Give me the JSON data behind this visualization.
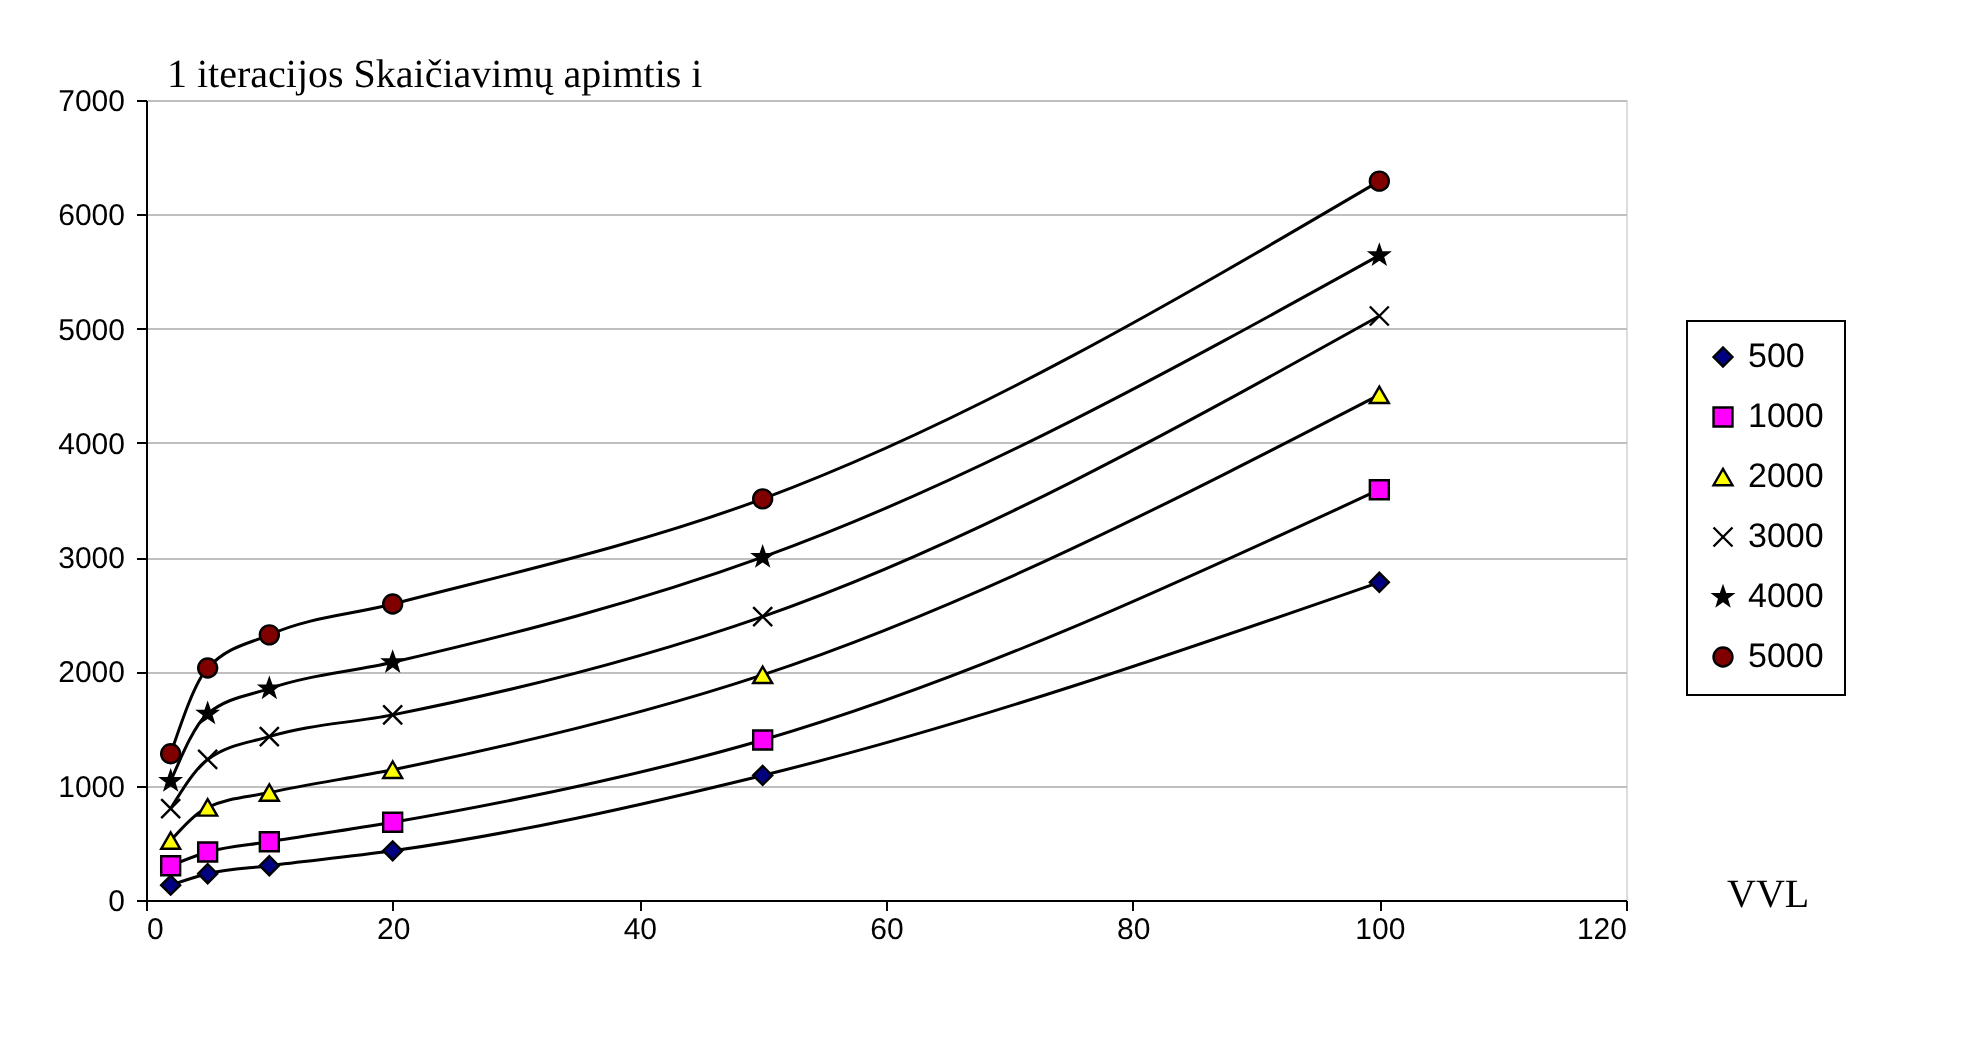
{
  "chart_data": {
    "type": "line",
    "xlabel": "VVL",
    "ylabel": "1 iteracijos Skaičiavimų apimtis i",
    "x": [
      2,
      5,
      10,
      20,
      50,
      100
    ],
    "series": [
      {
        "name": "500",
        "color": "#000080",
        "marker": "diamond",
        "values": [
          130,
          230,
          300,
          430,
          1090,
          2780
        ]
      },
      {
        "name": "1000",
        "color": "#ff00ff",
        "marker": "square",
        "values": [
          300,
          420,
          510,
          680,
          1400,
          3590
        ]
      },
      {
        "name": "2000",
        "color": "#ffff00",
        "marker": "triangle",
        "values": [
          520,
          810,
          940,
          1140,
          1970,
          4420
        ]
      },
      {
        "name": "3000",
        "color": "#000000",
        "marker": "cross",
        "values": [
          800,
          1230,
          1430,
          1620,
          2480,
          5110
        ]
      },
      {
        "name": "4000",
        "color": "#000000",
        "marker": "star",
        "values": [
          1040,
          1630,
          1850,
          2080,
          3000,
          5640
        ]
      },
      {
        "name": "5000",
        "color": "#800000",
        "marker": "circle",
        "values": [
          1280,
          2030,
          2320,
          2590,
          3510,
          6290
        ]
      }
    ],
    "xlim": [
      0,
      120
    ],
    "xticks": [
      0,
      20,
      40,
      60,
      80,
      100,
      120
    ],
    "ylim": [
      0,
      7000
    ],
    "yticks": [
      0,
      1000,
      2000,
      3000,
      4000,
      5000,
      6000,
      7000
    ],
    "grid": "y",
    "legend": "right",
    "line_style": "solid"
  }
}
